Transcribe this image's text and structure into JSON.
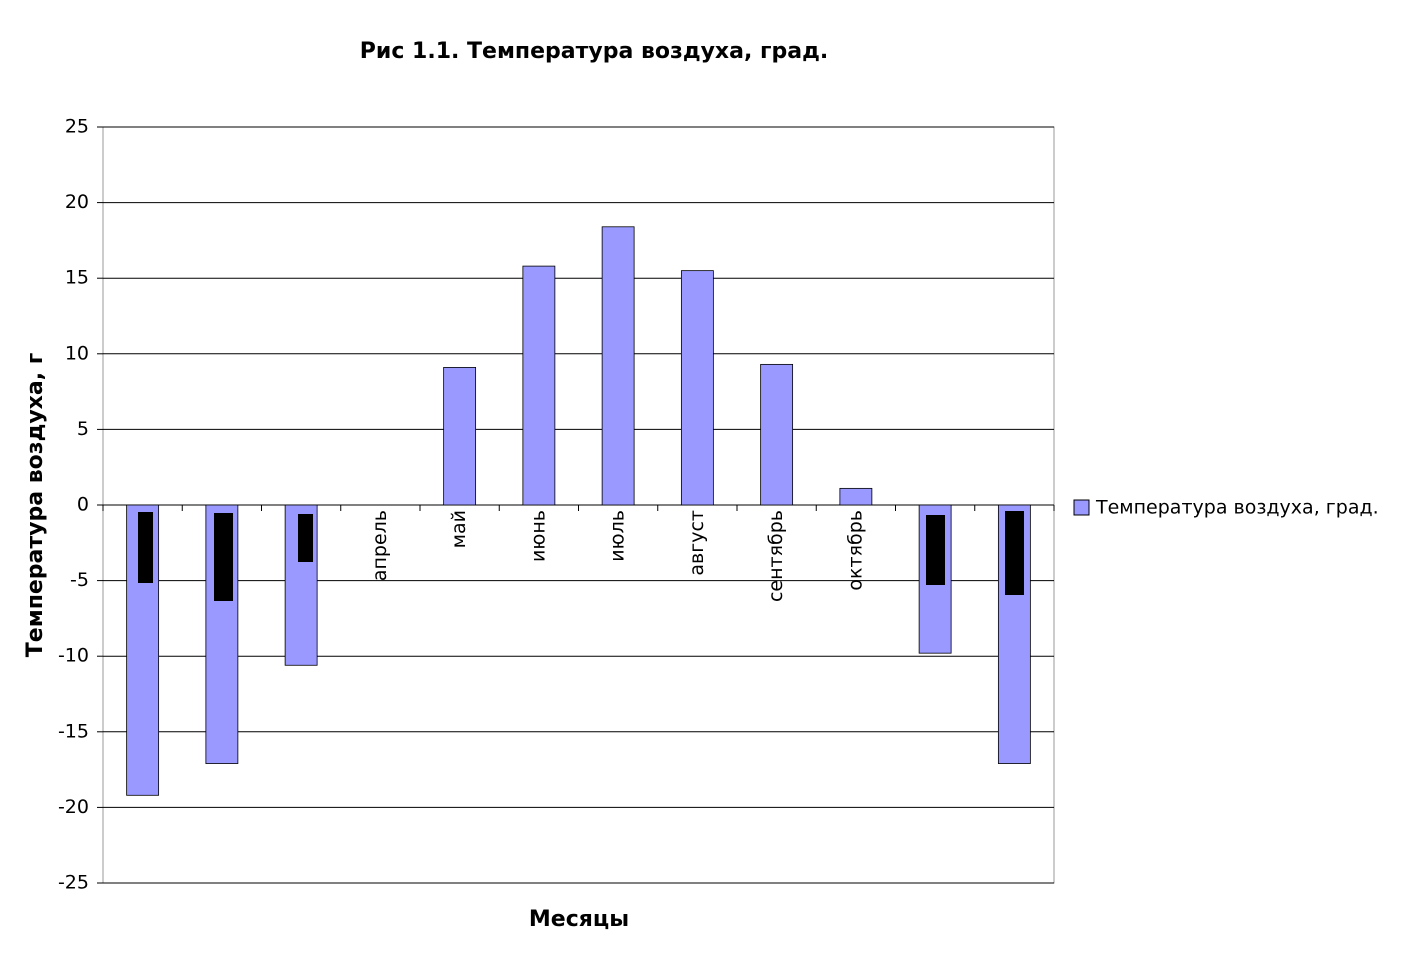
{
  "chart_data": {
    "type": "bar",
    "title": "Рис 1.1. Температура воздуха, град.",
    "x_label": "Месяцы",
    "y_label": "Температура воздуха, г",
    "categories": [
      null,
      null,
      null,
      "апрель",
      "май",
      "июнь",
      "июль",
      "август",
      "сентябрь",
      "октябрь",
      null,
      null
    ],
    "series": [
      {
        "name": "Температура воздуха, град.",
        "color": "#9999ff",
        "values": [
          -19.2,
          -17.1,
          -10.6,
          0,
          9.1,
          15.8,
          18.4,
          15.5,
          9.3,
          1.1,
          -9.8,
          -17.1
        ]
      }
    ],
    "ylim": [
      -25,
      25
    ],
    "yticks": [
      -25,
      -20,
      -15,
      -10,
      -5,
      0,
      5,
      10,
      15,
      20,
      25
    ],
    "grid": true,
    "legend": "right"
  }
}
